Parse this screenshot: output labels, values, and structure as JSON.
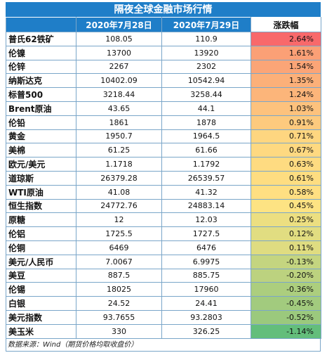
{
  "title": "隔夜全球金融市场行情",
  "headers": {
    "name": "",
    "date1": "2020年7月28日",
    "date2": "2020年7月29日",
    "change": "涨跌幅"
  },
  "colors": {
    "header_blue": "#1f7ec8"
  },
  "rows": [
    {
      "name": "普氏62铁矿",
      "v1": "108.05",
      "v2": "110.9",
      "pct": "2.64%",
      "color": "#f8696b"
    },
    {
      "name": "伦镍",
      "v1": "13700",
      "v2": "13920",
      "pct": "1.61%",
      "color": "#fba076"
    },
    {
      "name": "伦锌",
      "v1": "2267",
      "v2": "2302",
      "pct": "1.54%",
      "color": "#fba577"
    },
    {
      "name": "纳斯达克",
      "v1": "10402.09",
      "v2": "10542.94",
      "pct": "1.35%",
      "color": "#fcb079"
    },
    {
      "name": "标普500",
      "v1": "3218.44",
      "v2": "3258.44",
      "pct": "1.24%",
      "color": "#fcb57a"
    },
    {
      "name": "Brent原油",
      "v1": "43.65",
      "v2": "44.1",
      "pct": "1.03%",
      "color": "#fdc27d"
    },
    {
      "name": "伦铅",
      "v1": "1861",
      "v2": "1878",
      "pct": "0.91%",
      "color": "#fdca7e"
    },
    {
      "name": "黄金",
      "v1": "1950.7",
      "v2": "1964.5",
      "pct": "0.71%",
      "color": "#fed680"
    },
    {
      "name": "美棉",
      "v1": "61.25",
      "v2": "61.66",
      "pct": "0.67%",
      "color": "#fed981"
    },
    {
      "name": "欧元/美元",
      "v1": "1.1718",
      "v2": "1.1792",
      "pct": "0.63%",
      "color": "#fedb81"
    },
    {
      "name": "道琼斯",
      "v1": "26379.28",
      "v2": "26539.57",
      "pct": "0.61%",
      "color": "#fedd81"
    },
    {
      "name": "WTI原油",
      "v1": "41.08",
      "v2": "41.32",
      "pct": "0.58%",
      "color": "#ffdf82"
    },
    {
      "name": "恒生指数",
      "v1": "24772.76",
      "v2": "24883.14",
      "pct": "0.45%",
      "color": "#fde383"
    },
    {
      "name": "原糖",
      "v1": "12",
      "v2": "12.03",
      "pct": "0.25%",
      "color": "#ecdf81"
    },
    {
      "name": "伦铝",
      "v1": "1725.5",
      "v2": "1727.5",
      "pct": "0.12%",
      "color": "#e1dd81"
    },
    {
      "name": "伦铜",
      "v1": "6469",
      "v2": "6476",
      "pct": "0.11%",
      "color": "#dfdc81"
    },
    {
      "name": "美元/人民币",
      "v1": "7.0067",
      "v2": "6.9975",
      "pct": "-0.13%",
      "color": "#c4d580"
    },
    {
      "name": "美豆",
      "v1": "887.5",
      "v2": "885.75",
      "pct": "-0.20%",
      "color": "#bcd27f"
    },
    {
      "name": "伦锡",
      "v1": "18025",
      "v2": "17960",
      "pct": "-0.36%",
      "color": "#acce7e"
    },
    {
      "name": "白银",
      "v1": "24.52",
      "v2": "24.41",
      "pct": "-0.45%",
      "color": "#a2cb7e"
    },
    {
      "name": "美元指数",
      "v1": "93.7655",
      "v2": "93.2803",
      "pct": "-0.52%",
      "color": "#9bc97d"
    },
    {
      "name": "美玉米",
      "v1": "330",
      "v2": "326.25",
      "pct": "-1.14%",
      "color": "#63be7b"
    }
  ],
  "source": "数据来源：Wind（期货价格均取收盘价）"
}
